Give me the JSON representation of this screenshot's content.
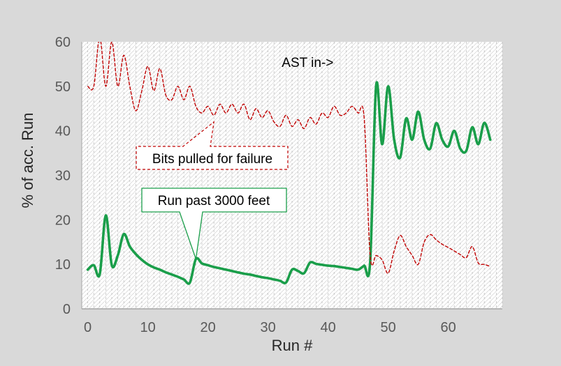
{
  "chart_data": {
    "type": "line",
    "title": "",
    "xlabel": "Run #",
    "ylabel": "% of acc. Run",
    "xlim": [
      -1,
      69
    ],
    "ylim": [
      0,
      60
    ],
    "xticks": [
      "0",
      "10",
      "20",
      "30",
      "40",
      "50",
      "60"
    ],
    "yticks": [
      "0",
      "10",
      "20",
      "30",
      "40",
      "50",
      "60"
    ],
    "grid": "vertical dashed",
    "legend": "none",
    "series": [
      {
        "style": "solid",
        "color": "#1a9e4a",
        "x": [
          0,
          1,
          2,
          3,
          4,
          5,
          6,
          7,
          8,
          9,
          10,
          11,
          12,
          13,
          14,
          15,
          16,
          17,
          18,
          19,
          20,
          21,
          22,
          23,
          24,
          25,
          26,
          27,
          28,
          29,
          30,
          31,
          32,
          33,
          34,
          35,
          36,
          37,
          38,
          39,
          40,
          41,
          42,
          43,
          44,
          45,
          46,
          47,
          48,
          49,
          50,
          51,
          52,
          53,
          54,
          55,
          56,
          57,
          58,
          59,
          60,
          61,
          62,
          63,
          64,
          65,
          66,
          67
        ],
        "y": [
          8.8,
          9.8,
          7.8,
          21,
          9.8,
          12,
          16.8,
          14,
          12.3,
          11,
          10,
          9.3,
          8.8,
          8.2,
          7.7,
          7.2,
          6.6,
          5.9,
          11.2,
          10.2,
          9.8,
          9.4,
          9.1,
          8.8,
          8.5,
          8.2,
          7.9,
          7.7,
          7.4,
          7.1,
          6.9,
          6.6,
          6.3,
          5.9,
          8.8,
          8.5,
          8,
          10.4,
          10.1,
          9.9,
          9.7,
          9.6,
          9.4,
          9.2,
          9,
          8.8,
          9.7,
          10.5,
          50.2,
          37,
          50,
          38,
          34,
          42.8,
          38,
          44.3,
          38,
          36,
          41.7,
          38,
          36.5,
          40,
          36,
          35.5,
          40.8,
          37,
          41.8,
          38
        ]
      },
      {
        "style": "dashed",
        "color": "#c00000",
        "x": [
          0,
          1,
          2,
          3,
          4,
          5,
          6,
          7,
          8,
          9,
          10,
          11,
          12,
          13,
          14,
          15,
          16,
          17,
          18,
          19,
          20,
          21,
          22,
          23,
          24,
          25,
          26,
          27,
          28,
          29,
          30,
          31,
          32,
          33,
          34,
          35,
          36,
          37,
          38,
          39,
          40,
          41,
          42,
          43,
          44,
          45,
          46,
          47,
          48,
          49,
          50,
          51,
          52,
          53,
          54,
          55,
          56,
          57,
          58,
          59,
          60,
          61,
          62,
          63,
          64,
          65,
          66,
          67
        ],
        "y": [
          50,
          50,
          61,
          50,
          60,
          50,
          57,
          50,
          44.5,
          49,
          54.5,
          49,
          54,
          48,
          47,
          50,
          47,
          50,
          45.5,
          44,
          45.5,
          43.5,
          46,
          44,
          46,
          44,
          46,
          42.5,
          45,
          43,
          44.5,
          42,
          41,
          43.5,
          41,
          42.5,
          40.5,
          43,
          41.5,
          44,
          43,
          45.5,
          43.5,
          44,
          45.5,
          44,
          43,
          12,
          12,
          11,
          8,
          13,
          16.5,
          14,
          12,
          10,
          15,
          16.7,
          15.5,
          14.5,
          13.8,
          13,
          12.2,
          11.5,
          14,
          10.3,
          10,
          9.5
        ]
      }
    ],
    "annotations": [
      {
        "text": "AST in->",
        "x": 36.6,
        "y": 55.6
      },
      {
        "text": "Bits pulled for failure",
        "style": "dashed-callout",
        "target": [
          21,
          42
        ]
      },
      {
        "text": "Run past 3000 feet",
        "style": "solid-callout",
        "target": [
          18,
          11.2
        ]
      }
    ]
  }
}
